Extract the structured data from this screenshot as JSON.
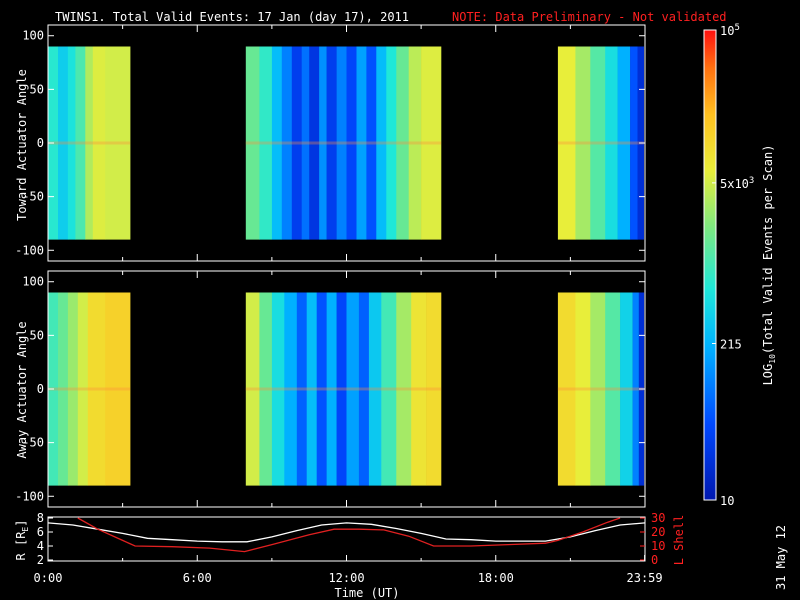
{
  "title": {
    "main": "TWINS1. Total Valid Events: 17 Jan (day  17), 2011",
    "note": "NOTE: Data Preliminary - Not validated"
  },
  "footer_date": "31 May 12",
  "colors": {
    "background": "#000000",
    "foreground": "#ffffff",
    "note": "#ff2020",
    "r_line": "#ffffff",
    "lshell_line": "#e02020"
  },
  "chart_data": [
    {
      "type": "heatmap",
      "name": "Toward Actuator Angle panel",
      "ylabel": "Toward Actuator Angle",
      "ylim": [
        -110,
        110
      ],
      "yticks": [
        100,
        50,
        0,
        -50,
        -100
      ],
      "xlim_hours": [
        0,
        24
      ],
      "data_y_range": [
        -90,
        90
      ],
      "data_intervals_hours": [
        [
          0.0,
          3.3
        ],
        [
          7.95,
          15.8
        ],
        [
          20.5,
          23.95
        ]
      ],
      "scale": "log",
      "bands": [
        {
          "from": 0.0,
          "to": 0.4,
          "v": 2.85
        },
        {
          "from": 0.4,
          "to": 0.8,
          "v": 2.55
        },
        {
          "from": 0.8,
          "to": 1.1,
          "v": 2.75
        },
        {
          "from": 1.1,
          "to": 1.5,
          "v": 3.05
        },
        {
          "from": 1.5,
          "to": 1.8,
          "v": 3.55
        },
        {
          "from": 1.8,
          "to": 2.3,
          "v": 3.75
        },
        {
          "from": 2.3,
          "to": 3.3,
          "v": 3.7
        },
        {
          "from": 7.95,
          "to": 8.5,
          "v": 3.2
        },
        {
          "from": 8.5,
          "to": 9.0,
          "v": 2.9
        },
        {
          "from": 9.0,
          "to": 9.4,
          "v": 2.4
        },
        {
          "from": 9.4,
          "to": 9.8,
          "v": 2.0
        },
        {
          "from": 9.8,
          "to": 10.2,
          "v": 1.5
        },
        {
          "from": 10.2,
          "to": 10.5,
          "v": 1.9
        },
        {
          "from": 10.5,
          "to": 10.9,
          "v": 1.4
        },
        {
          "from": 10.9,
          "to": 11.2,
          "v": 2.1
        },
        {
          "from": 11.2,
          "to": 11.6,
          "v": 1.5
        },
        {
          "from": 11.6,
          "to": 12.0,
          "v": 2.0
        },
        {
          "from": 12.0,
          "to": 12.4,
          "v": 1.6
        },
        {
          "from": 12.4,
          "to": 12.8,
          "v": 2.2
        },
        {
          "from": 12.8,
          "to": 13.2,
          "v": 1.7
        },
        {
          "from": 13.2,
          "to": 13.6,
          "v": 2.4
        },
        {
          "from": 13.6,
          "to": 14.0,
          "v": 2.8
        },
        {
          "from": 14.0,
          "to": 14.5,
          "v": 3.2
        },
        {
          "from": 14.5,
          "to": 15.0,
          "v": 3.6
        },
        {
          "from": 15.0,
          "to": 15.8,
          "v": 3.75
        },
        {
          "from": 20.5,
          "to": 21.2,
          "v": 3.8
        },
        {
          "from": 21.2,
          "to": 21.8,
          "v": 3.5
        },
        {
          "from": 21.8,
          "to": 22.4,
          "v": 3.1
        },
        {
          "from": 22.4,
          "to": 22.9,
          "v": 2.7
        },
        {
          "from": 22.9,
          "to": 23.4,
          "v": 2.3
        },
        {
          "from": 23.4,
          "to": 23.7,
          "v": 1.7
        },
        {
          "from": 23.7,
          "to": 23.95,
          "v": 1.3
        }
      ]
    },
    {
      "type": "heatmap",
      "name": "Away Actuator Angle panel",
      "ylabel": "Away Actuator Angle",
      "ylim": [
        -110,
        110
      ],
      "yticks": [
        100,
        50,
        0,
        -50,
        -100
      ],
      "xlim_hours": [
        0,
        24
      ],
      "data_y_range": [
        -90,
        90
      ],
      "data_intervals_hours": [
        [
          0.0,
          3.3
        ],
        [
          7.95,
          15.8
        ],
        [
          20.5,
          23.95
        ]
      ],
      "scale": "log",
      "bands": [
        {
          "from": 0.0,
          "to": 0.4,
          "v": 3.0
        },
        {
          "from": 0.4,
          "to": 0.8,
          "v": 3.2
        },
        {
          "from": 0.8,
          "to": 1.2,
          "v": 3.45
        },
        {
          "from": 1.2,
          "to": 1.6,
          "v": 3.7
        },
        {
          "from": 1.6,
          "to": 2.3,
          "v": 4.0
        },
        {
          "from": 2.3,
          "to": 3.3,
          "v": 4.1
        },
        {
          "from": 7.95,
          "to": 8.5,
          "v": 3.7
        },
        {
          "from": 8.5,
          "to": 9.0,
          "v": 3.2
        },
        {
          "from": 9.0,
          "to": 9.5,
          "v": 2.7
        },
        {
          "from": 9.5,
          "to": 10.0,
          "v": 2.3
        },
        {
          "from": 10.0,
          "to": 10.4,
          "v": 1.8
        },
        {
          "from": 10.4,
          "to": 10.8,
          "v": 2.4
        },
        {
          "from": 10.8,
          "to": 11.2,
          "v": 1.7
        },
        {
          "from": 11.2,
          "to": 11.6,
          "v": 2.3
        },
        {
          "from": 11.6,
          "to": 12.0,
          "v": 1.6
        },
        {
          "from": 12.0,
          "to": 12.5,
          "v": 2.2
        },
        {
          "from": 12.5,
          "to": 12.9,
          "v": 1.8
        },
        {
          "from": 12.9,
          "to": 13.4,
          "v": 2.5
        },
        {
          "from": 13.4,
          "to": 14.0,
          "v": 3.0
        },
        {
          "from": 14.0,
          "to": 14.6,
          "v": 3.5
        },
        {
          "from": 14.6,
          "to": 15.2,
          "v": 3.9
        },
        {
          "from": 15.2,
          "to": 15.8,
          "v": 4.0
        },
        {
          "from": 20.5,
          "to": 21.2,
          "v": 4.0
        },
        {
          "from": 21.2,
          "to": 21.8,
          "v": 3.8
        },
        {
          "from": 21.8,
          "to": 22.4,
          "v": 3.5
        },
        {
          "from": 22.4,
          "to": 23.0,
          "v": 3.1
        },
        {
          "from": 23.0,
          "to": 23.5,
          "v": 2.6
        },
        {
          "from": 23.5,
          "to": 23.75,
          "v": 2.0
        },
        {
          "from": 23.75,
          "to": 23.95,
          "v": 1.3
        }
      ]
    },
    {
      "type": "line",
      "name": "orbit panel",
      "xlabel": "Time (UT)",
      "xlim_hours": [
        0,
        24
      ],
      "x_ticks": [
        "0:00",
        "6:00",
        "12:00",
        "18:00",
        "23:59"
      ],
      "x_tick_hours": [
        0,
        6,
        12,
        18,
        23.983
      ],
      "left_axis": {
        "label": "R [R",
        "label_sub": "E",
        "label_end": "]",
        "ylim": [
          2,
          8
        ],
        "ticks": [
          2,
          4,
          6,
          8
        ]
      },
      "right_axis": {
        "label": "L Shell",
        "ylim": [
          0,
          30
        ],
        "ticks": [
          0,
          10,
          20,
          30
        ]
      },
      "series": [
        {
          "name": "R",
          "color": "#ffffff",
          "x": [
            0,
            1,
            2,
            3,
            4,
            5,
            6,
            7,
            8,
            9,
            10,
            11,
            12,
            13,
            14,
            15,
            16,
            17,
            18,
            19,
            20,
            21,
            22,
            23,
            24
          ],
          "y": [
            7.3,
            7.0,
            6.4,
            5.8,
            5.1,
            4.9,
            4.7,
            4.6,
            4.6,
            5.3,
            6.2,
            7.0,
            7.3,
            7.1,
            6.5,
            5.8,
            5.0,
            4.9,
            4.7,
            4.7,
            4.7,
            5.3,
            6.2,
            7.0,
            7.3
          ]
        },
        {
          "name": "L Shell",
          "color": "#e02020",
          "x": [
            1.2,
            2.0,
            3.0,
            3.5,
            5.0,
            6.5,
            7.9,
            9.0,
            10.5,
            11.5,
            12.5,
            13.5,
            14.5,
            15.5,
            17.0,
            18.5,
            20.0,
            20.5,
            21.5,
            22.5,
            23.0
          ],
          "y": [
            30,
            22,
            14,
            10,
            9.5,
            8.5,
            6.0,
            11,
            18,
            22,
            22,
            21.5,
            17,
            10,
            10,
            11,
            12,
            14,
            20,
            27,
            30
          ]
        }
      ]
    },
    {
      "type": "heatmap",
      "name": "colorbar",
      "label_prefix": "LOG",
      "label_sub": "10",
      "label_rest": "(Total Valid Events per Scan)",
      "range_log10": [
        1,
        5
      ],
      "ticks": [
        {
          "v": 1.0,
          "text": "10"
        },
        {
          "v": 2.332,
          "text": "215"
        },
        {
          "v": 3.699,
          "text": "5x10",
          "sup": "3"
        },
        {
          "v": 5.0,
          "text": "10",
          "sup": "5"
        }
      ]
    }
  ]
}
